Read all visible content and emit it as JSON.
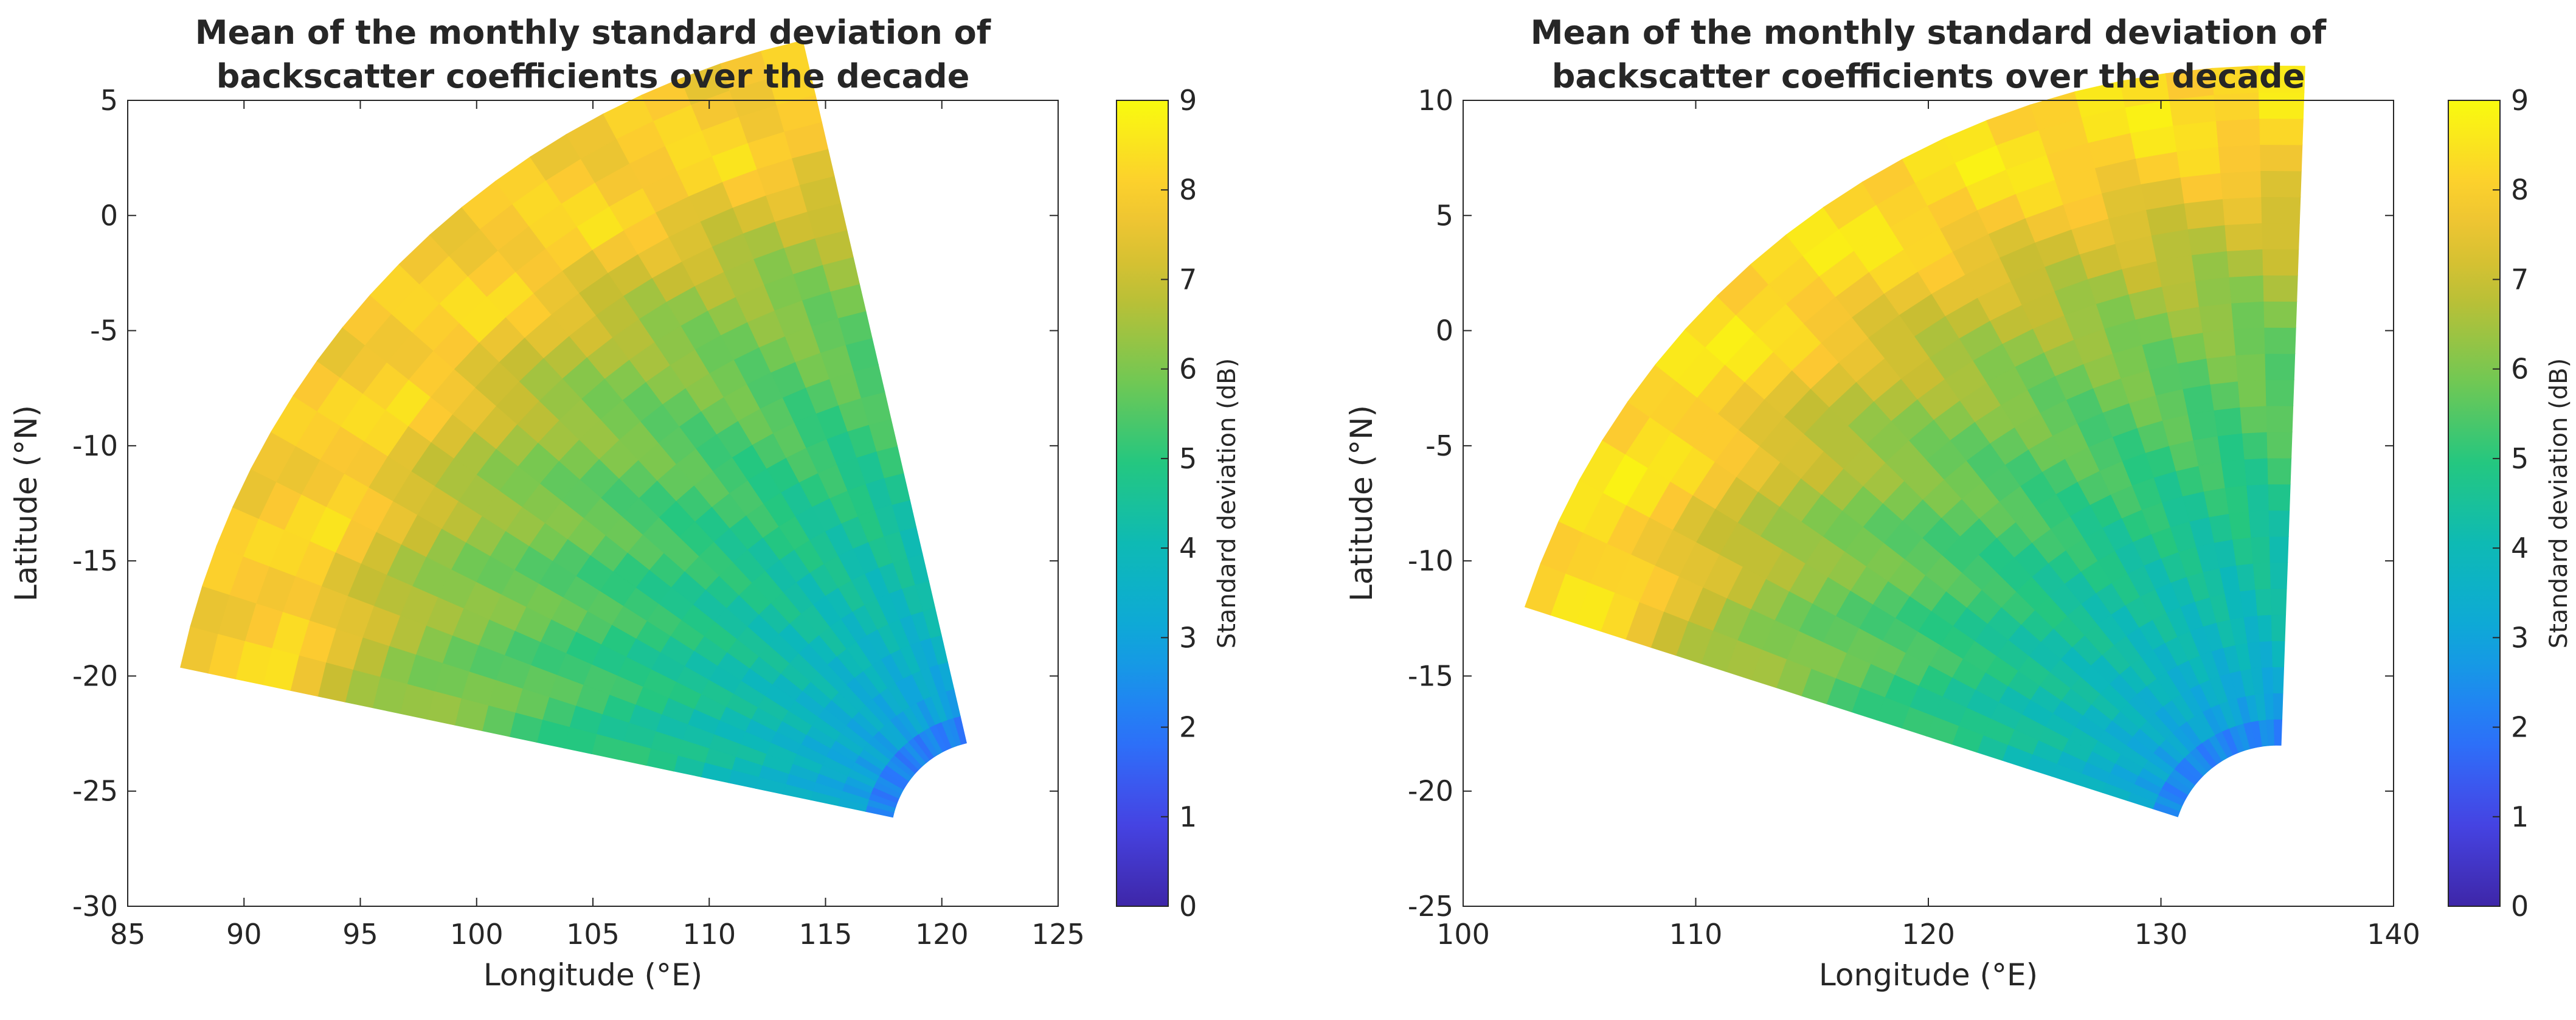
{
  "chart_data": [
    {
      "type": "heatmap",
      "title_lines": [
        "Mean of the monthly standard deviation of",
        "backscatter coefficients over the decade"
      ],
      "xlabel": "Longitude (°E)",
      "ylabel": "Latitude (°N)",
      "xlim": [
        85,
        125
      ],
      "ylim": [
        -30,
        5
      ],
      "xticks": [
        "85",
        "90",
        "95",
        "100",
        "105",
        "110",
        "115",
        "120",
        "125"
      ],
      "yticks": [
        "5",
        "0",
        "-5",
        "-10",
        "-15",
        "-20",
        "-25",
        "-30"
      ],
      "colorbar": {
        "label": "Standard deviation (dB)",
        "range": [
          0,
          9
        ],
        "ticks": [
          "0",
          "1",
          "2",
          "3",
          "4",
          "5",
          "6",
          "7",
          "8",
          "9"
        ]
      },
      "sector": {
        "center": [
          122,
          -27
        ],
        "r_inner": 4.2,
        "r_outer": 35.5,
        "angle_start_deg": 168,
        "angle_end_deg": 103
      },
      "radial_profile": {
        "r": [
          4.2,
          5,
          6,
          8,
          10,
          14,
          20,
          26,
          28,
          30,
          31,
          33,
          35.5
        ],
        "std_db": [
          1.2,
          2.5,
          3.0,
          3.4,
          3.9,
          4.5,
          5.4,
          6.3,
          6.9,
          7.6,
          8.2,
          8.0,
          7.8
        ]
      }
    },
    {
      "type": "heatmap",
      "title_lines": [
        "Mean of the monthly standard deviation of",
        "backscatter coefficients over the decade"
      ],
      "xlabel": "Longitude (°E)",
      "ylabel": "Latitude (°N)",
      "xlim": [
        100,
        140
      ],
      "ylim": [
        -25,
        10
      ],
      "xticks": [
        "100",
        "110",
        "120",
        "130",
        "140"
      ],
      "yticks": [
        "10",
        "5",
        "0",
        "-5",
        "-10",
        "-15",
        "-20",
        "-25"
      ],
      "colorbar": {
        "label": "Standard deviation (dB)",
        "range": [
          0,
          9
        ],
        "ticks": [
          "0",
          "1",
          "2",
          "3",
          "4",
          "5",
          "6",
          "7",
          "8",
          "9"
        ]
      },
      "sector": {
        "center": [
          135,
          -22.5
        ],
        "r_inner": 4.5,
        "r_outer": 34,
        "angle_start_deg": 162,
        "angle_end_deg": 88
      },
      "radial_profile": {
        "r": [
          4.5,
          5.2,
          6,
          8,
          10,
          14,
          18,
          22,
          25,
          28,
          30,
          32,
          34
        ],
        "std_db": [
          1.0,
          2.6,
          3.0,
          3.5,
          4.0,
          4.6,
          5.3,
          5.9,
          6.5,
          7.3,
          8.0,
          8.5,
          8.2
        ]
      }
    }
  ]
}
